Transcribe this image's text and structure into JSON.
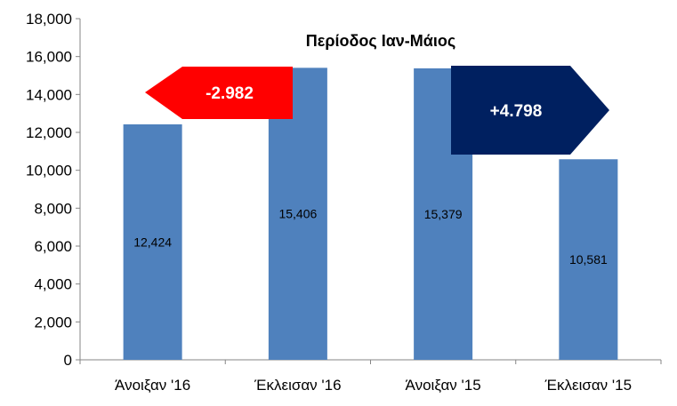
{
  "chart_data": {
    "type": "bar",
    "title": "Περίοδος Ιαν-Μάιος",
    "categories": [
      "Άνοιξαν '16",
      "Έκλεισαν '16",
      "Άνοιξαν '15",
      "Έκλεισαν '15"
    ],
    "values": [
      12424,
      15406,
      15379,
      10581
    ],
    "value_labels": [
      "12,424",
      "15,406",
      "15,379",
      "10,581"
    ],
    "ylim": [
      0,
      18000
    ],
    "yticks": [
      0,
      2000,
      4000,
      6000,
      8000,
      10000,
      12000,
      14000,
      16000,
      18000
    ],
    "ytick_labels": [
      "0",
      "2,000",
      "4,000",
      "6,000",
      "8,000",
      "10,000",
      "12,000",
      "14,000",
      "16,000",
      "18,000"
    ],
    "grid": false,
    "bar_color": "#4f81bd",
    "annotations": [
      {
        "text": "-2.982",
        "color": "#ff0000",
        "direction": "left",
        "between": [
          "Άνοιξαν '16",
          "Έκλεισαν '16"
        ]
      },
      {
        "text": "+4.798",
        "color": "#002060",
        "direction": "right",
        "between": [
          "Άνοιξαν '15",
          "Έκλεισαν '15"
        ]
      }
    ]
  }
}
